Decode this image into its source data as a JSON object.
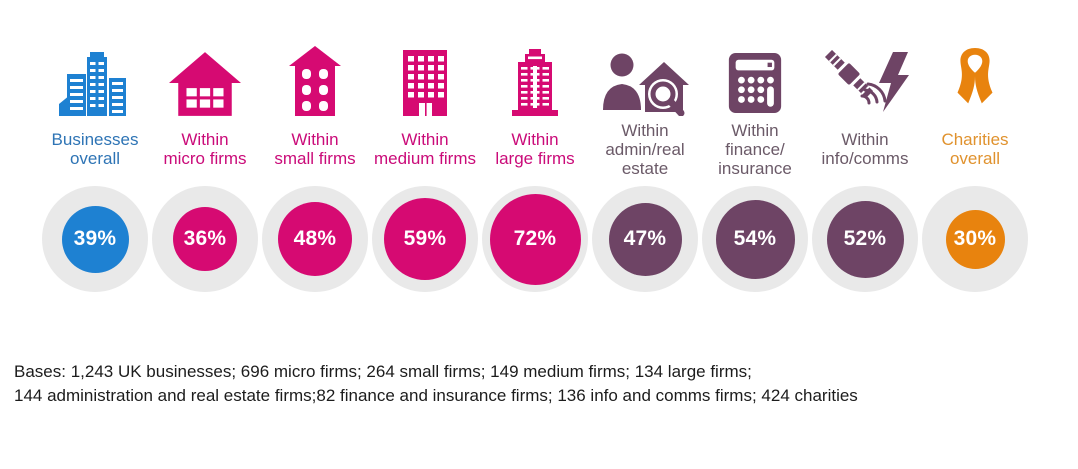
{
  "chart_data": {
    "type": "bar",
    "variant": "circle-pictogram-percentages",
    "categories": [
      "Businesses overall",
      "Within micro firms",
      "Within small firms",
      "Within medium firms",
      "Within large firms",
      "Within admin/real estate",
      "Within finance/insurance",
      "Within info/comms",
      "Charities overall"
    ],
    "values": [
      39,
      36,
      48,
      59,
      72,
      47,
      54,
      52,
      30
    ],
    "unit": "%",
    "title": "",
    "annotation": "Bases: 1,243 UK businesses; 696 micro firms; 264 small firms; 149 medium firms; 134 large firms; 144 administration and real estate firms;82 finance and insurance firms; 136 info and comms firms; 424 charities",
    "legend_position": "none",
    "grid": false
  },
  "columns": [
    {
      "icon": "office-buildings-icon",
      "label_lines": [
        "Businesses",
        "overall"
      ],
      "value": 39,
      "value_label": "39%",
      "color": "#1E81D2",
      "label_color": "#2E74B5"
    },
    {
      "icon": "house-icon",
      "label_lines": [
        "Within",
        "micro firms"
      ],
      "value": 36,
      "value_label": "36%",
      "color": "#D60A72",
      "label_color": "#CA0B79"
    },
    {
      "icon": "small-building-icon",
      "label_lines": [
        "Within",
        "small firms"
      ],
      "value": 48,
      "value_label": "48%",
      "color": "#D60A72",
      "label_color": "#CA0B79"
    },
    {
      "icon": "medium-building-icon",
      "label_lines": [
        "Within",
        "medium firms"
      ],
      "value": 59,
      "value_label": "59%",
      "color": "#D60A72",
      "label_color": "#CA0B79"
    },
    {
      "icon": "skyscraper-icon",
      "label_lines": [
        "Within",
        "large firms"
      ],
      "value": 72,
      "value_label": "72%",
      "color": "#D60A72",
      "label_color": "#CA0B79"
    },
    {
      "icon": "person-house-magnifier-icon",
      "label_lines": [
        "Within",
        "admin/real",
        "estate"
      ],
      "value": 47,
      "value_label": "47%",
      "color": "#6E4465",
      "label_color": "#6B5A68"
    },
    {
      "icon": "calculator-icon",
      "label_lines": [
        "Within",
        "finance/",
        "insurance"
      ],
      "value": 54,
      "value_label": "54%",
      "color": "#6E4465",
      "label_color": "#6B5A68"
    },
    {
      "icon": "satellite-bolt-icon",
      "label_lines": [
        "Within",
        "info/comms"
      ],
      "value": 52,
      "value_label": "52%",
      "color": "#6E4465",
      "label_color": "#6B5A68"
    },
    {
      "icon": "awareness-ribbon-icon",
      "label_lines": [
        "Charities",
        "overall"
      ],
      "value": 30,
      "value_label": "30%",
      "color": "#E8830E",
      "label_color": "#E0922E"
    }
  ],
  "footer": {
    "bases_lines": [
      "Bases: 1,243 UK businesses; 696 micro firms; 264 small firms; 149 medium firms; 134 large firms;",
      "144 administration and real estate firms;82 finance and insurance firms; 136 info and comms firms; 424 charities"
    ]
  },
  "colors": {
    "circle_track": "#E9E9E9",
    "percent_text": "#FFFFFF"
  }
}
